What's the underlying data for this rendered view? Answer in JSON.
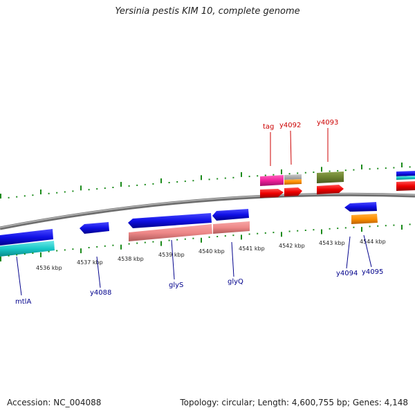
{
  "title": "Yersinia pestis KIM 10, complete genome",
  "footer": {
    "accession": "Accession: NC_004088",
    "summary": "Topology: circular; Length: 4,600,755 bp; Genes: 4,148"
  },
  "colors": {
    "backbone": "#8a8a8a",
    "tick": "#1a8a1a",
    "tick_label": "#222222",
    "gene_label_forward": "#cc0000",
    "gene_label_reverse": "#00008b"
  },
  "scale_ticks": [
    "4536 kbp",
    "4537 kbp",
    "4538 kbp",
    "4539 kbp",
    "4540 kbp",
    "4541 kbp",
    "4542 kbp",
    "4543 kbp",
    "4544 kbp"
  ],
  "gene_labels": {
    "forward": [
      "tag",
      "y4092",
      "y4093"
    ],
    "reverse": [
      "mtlA",
      "y4088",
      "glyS",
      "glyQ",
      "y4094",
      "y4095"
    ]
  }
}
